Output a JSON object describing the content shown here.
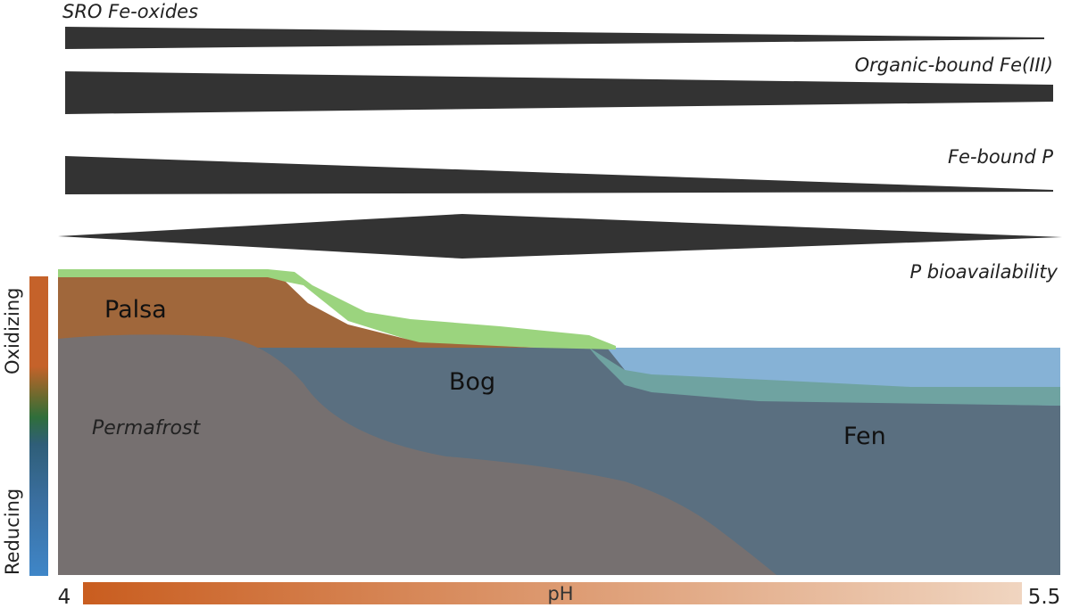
{
  "wedges": [
    {
      "label": "SRO Fe-oxides",
      "shape": "decreasing"
    },
    {
      "label": "Organic-bound Fe(III)",
      "shape": "decreasing"
    },
    {
      "label": "Fe-bound P",
      "shape": "decreasing"
    },
    {
      "label": "P bioavailability",
      "shape": "peak-middle"
    }
  ],
  "regions": {
    "palsa": "Palsa",
    "bog": "Bog",
    "fen": "Fen",
    "permafrost": "Permafrost"
  },
  "redox_axis": {
    "top": "Oxidizing",
    "bottom": "Reducing"
  },
  "ph_axis": {
    "label": "pH",
    "min": "4",
    "max": "5.5"
  },
  "colors": {
    "wedge": "#333333",
    "vegetation": "#9bd47e",
    "palsa_soil": "#a0673b",
    "permafrost": "#767070",
    "water_surface": "#86b2d6",
    "peat_saturated": "#5a6f80",
    "fen_transition": "#6fa3a1",
    "ph_low": "#c95d1f",
    "ph_high": "#f0d5c0",
    "redox_oxidizing": "#c5622a",
    "redox_reducing": "#3f86c8"
  }
}
